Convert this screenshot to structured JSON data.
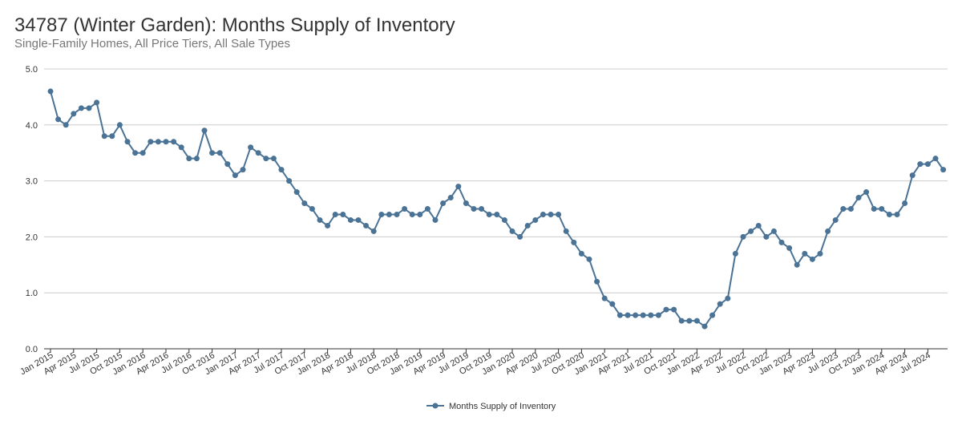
{
  "chart_data": {
    "type": "line",
    "title": "34787 (Winter Garden): Months Supply of Inventory",
    "subtitle": "Single-Family Homes, All Price Tiers, All Sale Types",
    "xlabel": "",
    "ylabel": "",
    "ylim": [
      0,
      5
    ],
    "yticks": [
      "0.0",
      "1.0",
      "2.0",
      "3.0",
      "4.0",
      "5.0"
    ],
    "grid": true,
    "legend_position": "bottom-center",
    "x_start": "Jan 2015",
    "x_end": "Sep 2024",
    "x_tick_labels": [
      "Jan 2015",
      "Apr 2015",
      "Jul 2015",
      "Oct 2015",
      "Jan 2016",
      "Apr 2016",
      "Jul 2016",
      "Oct 2016",
      "Jan 2017",
      "Apr 2017",
      "Jul 2017",
      "Oct 2017",
      "Jan 2018",
      "Apr 2018",
      "Jul 2018",
      "Oct 2018",
      "Jan 2019",
      "Apr 2019",
      "Jul 2019",
      "Oct 2019",
      "Jan 2020",
      "Apr 2020",
      "Jul 2020",
      "Oct 2020",
      "Jan 2021",
      "Apr 2021",
      "Jul 2021",
      "Oct 2021",
      "Jan 2022",
      "Apr 2022",
      "Jul 2022",
      "Oct 2022",
      "Jan 2023",
      "Apr 2023",
      "Jul 2023",
      "Oct 2023",
      "Jan 2024",
      "Apr 2024",
      "Jul 2024"
    ],
    "series": [
      {
        "name": "Months Supply of Inventory",
        "color": "#4a7396",
        "values": [
          4.6,
          4.1,
          4.0,
          4.2,
          4.3,
          4.3,
          4.4,
          3.8,
          3.8,
          4.0,
          3.7,
          3.5,
          3.5,
          3.7,
          3.7,
          3.7,
          3.7,
          3.6,
          3.4,
          3.4,
          3.9,
          3.5,
          3.5,
          3.3,
          3.1,
          3.2,
          3.6,
          3.5,
          3.4,
          3.4,
          3.2,
          3.0,
          2.8,
          2.6,
          2.5,
          2.3,
          2.2,
          2.4,
          2.4,
          2.3,
          2.3,
          2.2,
          2.1,
          2.4,
          2.4,
          2.4,
          2.5,
          2.4,
          2.4,
          2.5,
          2.3,
          2.6,
          2.7,
          2.9,
          2.6,
          2.5,
          2.5,
          2.4,
          2.4,
          2.3,
          2.1,
          2.0,
          2.2,
          2.3,
          2.4,
          2.4,
          2.4,
          2.1,
          1.9,
          1.7,
          1.6,
          1.2,
          0.9,
          0.8,
          0.6,
          0.6,
          0.6,
          0.6,
          0.6,
          0.6,
          0.7,
          0.7,
          0.5,
          0.5,
          0.5,
          0.4,
          0.6,
          0.8,
          0.9,
          1.7,
          2.0,
          2.1,
          2.2,
          2.0,
          2.1,
          1.9,
          1.8,
          1.5,
          1.7,
          1.6,
          1.7,
          2.1,
          2.3,
          2.5,
          2.5,
          2.7,
          2.8,
          2.5,
          2.5,
          2.4,
          2.4,
          2.6,
          3.1,
          3.3,
          3.3,
          3.4,
          3.2
        ]
      }
    ]
  }
}
